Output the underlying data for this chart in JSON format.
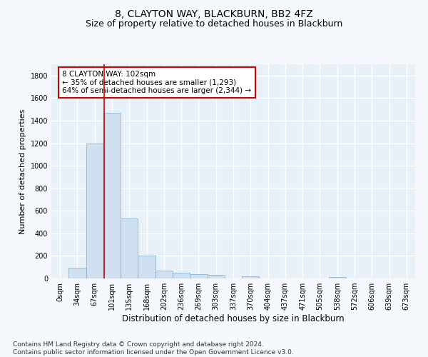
{
  "title": "8, CLAYTON WAY, BLACKBURN, BB2 4FZ",
  "subtitle": "Size of property relative to detached houses in Blackburn",
  "xlabel": "Distribution of detached houses by size in Blackburn",
  "ylabel": "Number of detached properties",
  "bar_color": "#cfe0f0",
  "bar_edge_color": "#7aabcc",
  "background_color": "#e8f0f8",
  "grid_color": "#ffffff",
  "fig_facecolor": "#f5f8fc",
  "bin_labels": [
    "0sqm",
    "34sqm",
    "67sqm",
    "101sqm",
    "135sqm",
    "168sqm",
    "202sqm",
    "236sqm",
    "269sqm",
    "303sqm",
    "337sqm",
    "370sqm",
    "404sqm",
    "437sqm",
    "471sqm",
    "505sqm",
    "538sqm",
    "572sqm",
    "606sqm",
    "639sqm",
    "673sqm"
  ],
  "bar_values": [
    0,
    95,
    1200,
    1470,
    535,
    205,
    70,
    50,
    35,
    30,
    0,
    20,
    0,
    0,
    0,
    0,
    15,
    0,
    0,
    0,
    0
  ],
  "ylim": [
    0,
    1900
  ],
  "yticks": [
    0,
    200,
    400,
    600,
    800,
    1000,
    1200,
    1400,
    1600,
    1800
  ],
  "vline_x": 3.05,
  "vline_color": "#cc0000",
  "annotation_text": "8 CLAYTON WAY: 102sqm\n← 35% of detached houses are smaller (1,293)\n64% of semi-detached houses are larger (2,344) →",
  "footnote": "Contains HM Land Registry data © Crown copyright and database right 2024.\nContains public sector information licensed under the Open Government Licence v3.0.",
  "title_fontsize": 10,
  "subtitle_fontsize": 9,
  "ylabel_fontsize": 8,
  "xlabel_fontsize": 8.5,
  "tick_fontsize": 7,
  "annotation_fontsize": 7.5,
  "footnote_fontsize": 6.5
}
